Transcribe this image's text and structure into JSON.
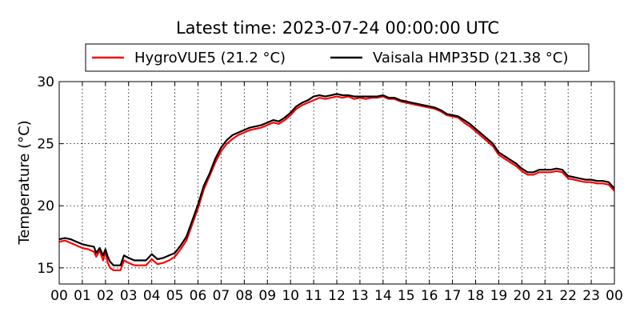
{
  "chart_data": {
    "type": "line",
    "title": "Latest time: 2023-07-24 00:00:00 UTC",
    "xlabel": "",
    "ylabel": "Temperature (°C)",
    "xlim": [
      0,
      24
    ],
    "ylim": [
      13.7,
      30
    ],
    "x_tick_labels": [
      "00",
      "01",
      "02",
      "03",
      "04",
      "05",
      "06",
      "07",
      "08",
      "09",
      "10",
      "11",
      "12",
      "13",
      "14",
      "15",
      "16",
      "17",
      "18",
      "19",
      "20",
      "21",
      "22",
      "23",
      "00"
    ],
    "y_ticks": [
      15,
      20,
      25,
      30
    ],
    "grid": true,
    "legend_position": "top",
    "series": [
      {
        "name": "HygroVUE5 (21.2 °C)",
        "color": "#ff0000",
        "x": [
          0,
          0.25,
          0.5,
          0.75,
          1,
          1.25,
          1.5,
          1.6,
          1.75,
          1.9,
          2,
          2.1,
          2.2,
          2.35,
          2.5,
          2.65,
          2.8,
          2.9,
          3,
          3.25,
          3.5,
          3.75,
          4,
          4.25,
          4.5,
          4.75,
          5,
          5.25,
          5.5,
          5.75,
          6,
          6.25,
          6.5,
          6.75,
          7,
          7.25,
          7.5,
          7.75,
          8,
          8.25,
          8.5,
          8.75,
          9,
          9.25,
          9.5,
          9.75,
          10,
          10.25,
          10.5,
          10.75,
          11,
          11.25,
          11.5,
          11.75,
          12,
          12.25,
          12.5,
          12.75,
          13,
          13.25,
          13.5,
          13.75,
          14,
          14.25,
          14.5,
          14.75,
          15,
          15.25,
          15.5,
          15.75,
          16,
          16.25,
          16.5,
          16.75,
          17,
          17.25,
          17.5,
          17.75,
          18,
          18.25,
          18.5,
          18.75,
          19,
          19.25,
          19.5,
          19.75,
          20,
          20.25,
          20.5,
          20.75,
          21,
          21.25,
          21.5,
          21.75,
          22,
          22.25,
          22.5,
          22.75,
          23,
          23.25,
          23.5,
          23.75,
          24
        ],
        "y": [
          17.1,
          17.2,
          17.0,
          16.8,
          16.6,
          16.5,
          16.3,
          15.9,
          16.4,
          15.6,
          16.3,
          15.4,
          15.0,
          14.8,
          14.8,
          14.8,
          15.6,
          15.5,
          15.4,
          15.2,
          15.2,
          15.2,
          15.7,
          15.3,
          15.4,
          15.6,
          15.9,
          16.5,
          17.2,
          18.5,
          19.8,
          21.3,
          22.4,
          23.5,
          24.4,
          25.0,
          25.4,
          25.7,
          25.9,
          26.1,
          26.2,
          26.3,
          26.5,
          26.7,
          26.6,
          26.9,
          27.3,
          27.8,
          28.1,
          28.3,
          28.5,
          28.7,
          28.6,
          28.7,
          28.8,
          28.7,
          28.8,
          28.6,
          28.7,
          28.6,
          28.7,
          28.7,
          28.8,
          28.6,
          28.6,
          28.4,
          28.3,
          28.2,
          28.1,
          28.0,
          27.9,
          27.8,
          27.6,
          27.3,
          27.2,
          27.1,
          26.7,
          26.4,
          26.0,
          25.6,
          25.2,
          24.8,
          24.1,
          23.8,
          23.5,
          23.2,
          22.8,
          22.5,
          22.5,
          22.7,
          22.7,
          22.7,
          22.8,
          22.7,
          22.2,
          22.1,
          22.0,
          21.9,
          21.9,
          21.8,
          21.8,
          21.7,
          21.2
        ]
      },
      {
        "name": "Vaisala HMP35D (21.38 °C)",
        "color": "#000000",
        "x": [
          0,
          0.25,
          0.5,
          0.75,
          1,
          1.25,
          1.5,
          1.6,
          1.75,
          1.9,
          2,
          2.1,
          2.2,
          2.35,
          2.5,
          2.65,
          2.8,
          2.9,
          3,
          3.25,
          3.5,
          3.75,
          4,
          4.25,
          4.5,
          4.75,
          5,
          5.25,
          5.5,
          5.75,
          6,
          6.25,
          6.5,
          6.75,
          7,
          7.25,
          7.5,
          7.75,
          8,
          8.25,
          8.5,
          8.75,
          9,
          9.25,
          9.5,
          9.75,
          10,
          10.25,
          10.5,
          10.75,
          11,
          11.25,
          11.5,
          11.75,
          12,
          12.25,
          12.5,
          12.75,
          13,
          13.25,
          13.5,
          13.75,
          14,
          14.25,
          14.5,
          14.75,
          15,
          15.25,
          15.5,
          15.75,
          16,
          16.25,
          16.5,
          16.75,
          17,
          17.25,
          17.5,
          17.75,
          18,
          18.25,
          18.5,
          18.75,
          19,
          19.25,
          19.5,
          19.75,
          20,
          20.25,
          20.5,
          20.75,
          21,
          21.25,
          21.5,
          21.75,
          22,
          22.25,
          22.5,
          22.75,
          23,
          23.25,
          23.5,
          23.75,
          24
        ],
        "y": [
          17.3,
          17.4,
          17.3,
          17.1,
          16.9,
          16.8,
          16.7,
          16.2,
          16.6,
          16.0,
          16.5,
          15.9,
          15.5,
          15.2,
          15.2,
          15.2,
          16.0,
          15.9,
          15.8,
          15.6,
          15.6,
          15.6,
          16.1,
          15.7,
          15.8,
          16.0,
          16.2,
          16.8,
          17.5,
          18.8,
          20.1,
          21.6,
          22.6,
          23.8,
          24.7,
          25.3,
          25.7,
          25.9,
          26.1,
          26.3,
          26.4,
          26.5,
          26.7,
          26.9,
          26.8,
          27.1,
          27.5,
          28.0,
          28.3,
          28.5,
          28.8,
          28.9,
          28.8,
          28.9,
          29.0,
          28.9,
          28.9,
          28.8,
          28.8,
          28.8,
          28.8,
          28.8,
          28.9,
          28.7,
          28.7,
          28.5,
          28.4,
          28.3,
          28.2,
          28.1,
          28.0,
          27.9,
          27.7,
          27.4,
          27.3,
          27.2,
          26.9,
          26.6,
          26.2,
          25.8,
          25.4,
          25.0,
          24.3,
          24.0,
          23.7,
          23.4,
          23.0,
          22.7,
          22.7,
          22.9,
          22.9,
          22.9,
          23.0,
          22.9,
          22.4,
          22.3,
          22.2,
          22.1,
          22.1,
          22.0,
          22.0,
          21.9,
          21.4
        ]
      }
    ]
  }
}
